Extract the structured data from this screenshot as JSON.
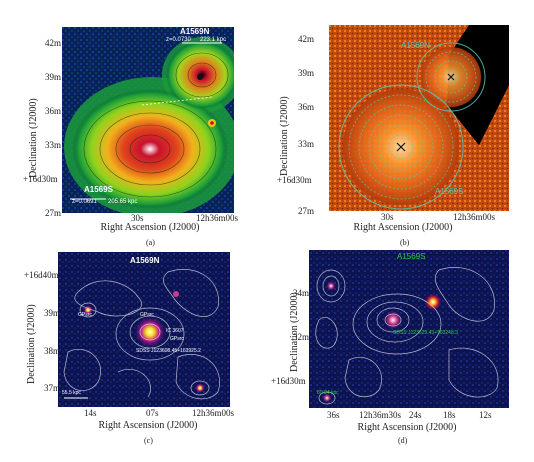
{
  "panels": [
    {
      "id": "a",
      "caption": "(a)",
      "ylabel": "Declination (J2000)",
      "xlabel": "Right Ascension (J2000)",
      "yticks": [
        "42m",
        "39m",
        "36m",
        "33m",
        "+16d30m",
        "27m"
      ],
      "xticks": [
        "30s",
        "12h36m00s"
      ],
      "labels": {
        "north": "A1569N",
        "north_z": "z=0.0730",
        "north_scale": "223.1 kpc",
        "south": "A1569S",
        "south_z": "z=0.0691",
        "south_scale": "205.65 kpc"
      }
    },
    {
      "id": "b",
      "caption": "(b)",
      "ylabel": "Declination (J2000)",
      "xlabel": "Right Ascension (J2000)",
      "yticks": [
        "42m",
        "39m",
        "36m",
        "33m",
        "+16d30m",
        "27m"
      ],
      "xticks": [
        "30s",
        "12h36m00s"
      ],
      "labels": {
        "north": "A1569N",
        "south": "A1569S"
      }
    },
    {
      "id": "c",
      "caption": "(c)",
      "ylabel": "Declination (J2000)",
      "xlabel": "Right Ascension (J2000)",
      "yticks": [
        "+16d40m",
        "39m",
        "38m",
        "37m"
      ],
      "xticks": [
        "14s",
        "07s",
        "12h36m00s"
      ],
      "labels": {
        "title": "A1569N",
        "gpsrc1": "GPsrc",
        "gpsrc2": "GPsrc",
        "ic": "IC 3607",
        "gpsrc3": "GPsrc",
        "sdss": "SDSS J123608.45+163925.2",
        "scale": "55.5 kpc"
      }
    },
    {
      "id": "d",
      "caption": "(d)",
      "ylabel": "Declination (J2000)",
      "xlabel": "Right Ascension (J2000)",
      "yticks": [
        "34m",
        "32m",
        "+16d30m"
      ],
      "xticks": [
        "36s",
        "12h36m30s",
        "24s",
        "18s",
        "12s"
      ],
      "labels": {
        "title": "A1569S",
        "sdss": "SDSS J123629.43+163248.3",
        "scale": "80.84 kpc"
      }
    }
  ]
}
